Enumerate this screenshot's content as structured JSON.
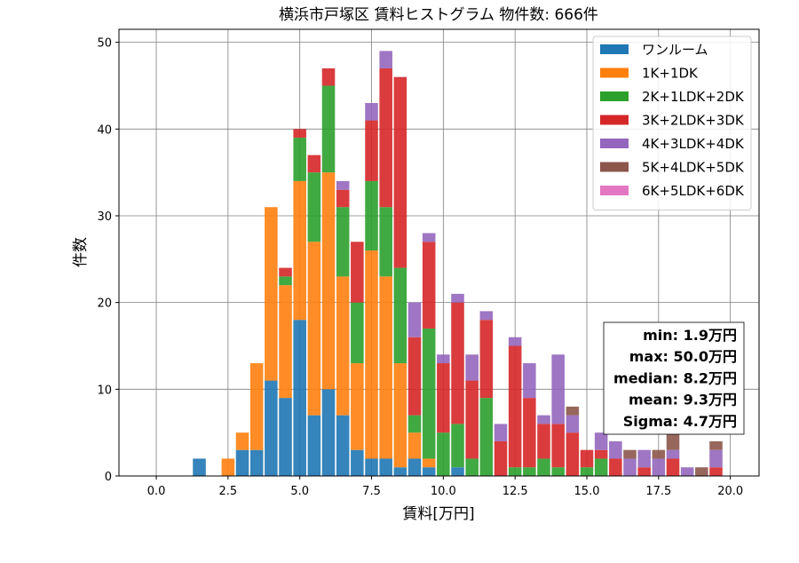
{
  "chart_data": {
    "type": "bar",
    "stacked": true,
    "title": "横浜市戸塚区 賃料ヒストグラム  物件数: 666件",
    "xlabel": "賃料[万円]",
    "ylabel": "件数",
    "xlim": [
      -1.3,
      21.0
    ],
    "ylim": [
      0,
      51.5
    ],
    "xticks": [
      0.0,
      2.5,
      5.0,
      7.5,
      10.0,
      12.5,
      15.0,
      17.5,
      20.0
    ],
    "xtick_labels": [
      "0.0",
      "2.5",
      "5.0",
      "7.5",
      "10.0",
      "12.5",
      "15.0",
      "17.5",
      "20.0"
    ],
    "yticks": [
      0,
      10,
      20,
      30,
      40,
      50
    ],
    "ytick_labels": [
      "0",
      "10",
      "20",
      "30",
      "40",
      "50"
    ],
    "grid": true,
    "legend_position": "top-right",
    "bin_width": 0.5,
    "x": [
      1.5,
      2.0,
      2.5,
      3.0,
      3.5,
      4.0,
      4.5,
      5.0,
      5.5,
      6.0,
      6.5,
      7.0,
      7.5,
      8.0,
      8.5,
      9.0,
      9.5,
      10.0,
      10.5,
      11.0,
      11.5,
      12.0,
      12.5,
      13.0,
      13.5,
      14.0,
      14.5,
      15.0,
      15.5,
      16.0,
      16.5,
      17.0,
      17.5,
      18.0,
      18.5,
      19.0,
      19.5
    ],
    "series": [
      {
        "name": "ワンルーム",
        "color": "#1f77b4",
        "values": [
          2,
          0,
          0,
          3,
          3,
          11,
          9,
          18,
          7,
          10,
          7,
          3,
          2,
          2,
          1,
          2,
          1,
          0,
          1,
          0,
          0,
          0,
          0,
          0,
          0,
          0,
          0,
          0,
          0,
          0,
          0,
          0,
          0,
          0,
          0,
          0,
          0
        ]
      },
      {
        "name": "1K+1DK",
        "color": "#ff7f0e",
        "values": [
          0,
          0,
          2,
          2,
          10,
          20,
          13,
          16,
          20,
          25,
          16,
          10,
          24,
          21,
          12,
          3,
          1,
          0,
          0,
          0,
          0,
          0,
          0,
          0,
          0,
          0,
          0,
          0,
          0,
          0,
          0,
          0,
          0,
          0,
          0,
          0,
          0
        ]
      },
      {
        "name": "2K+1LDK+2DK",
        "color": "#2ca02c",
        "values": [
          0,
          0,
          0,
          0,
          0,
          0,
          1,
          5,
          8,
          10,
          8,
          7,
          8,
          8,
          11,
          2,
          15,
          5,
          5,
          2,
          9,
          0,
          1,
          1,
          2,
          1,
          0,
          1,
          2,
          0,
          0,
          0,
          0,
          0,
          0,
          0,
          0
        ]
      },
      {
        "name": "3K+2LDK+3DK",
        "color": "#d62728",
        "values": [
          0,
          0,
          0,
          0,
          0,
          0,
          1,
          1,
          2,
          2,
          2,
          7,
          7,
          16,
          22,
          9,
          10,
          8,
          14,
          9,
          9,
          4,
          14,
          8,
          4,
          5,
          5,
          2,
          1,
          2,
          0,
          1,
          0,
          2,
          0,
          0,
          1
        ]
      },
      {
        "name": "4K+3LDK+4DK",
        "color": "#9467bd",
        "values": [
          0,
          0,
          0,
          0,
          0,
          0,
          0,
          0,
          0,
          0,
          1,
          0,
          2,
          2,
          0,
          4,
          1,
          1,
          1,
          3,
          1,
          2,
          1,
          4,
          1,
          8,
          2,
          0,
          2,
          2,
          2,
          2,
          2,
          1,
          1,
          0,
          2
        ]
      },
      {
        "name": "5K+4LDK+5DK",
        "color": "#8c564b",
        "values": [
          0,
          0,
          0,
          0,
          0,
          0,
          0,
          0,
          0,
          0,
          0,
          0,
          0,
          0,
          0,
          0,
          0,
          0,
          0,
          0,
          0,
          0,
          0,
          0,
          0,
          0,
          1,
          0,
          0,
          0,
          1,
          0,
          1,
          2,
          0,
          1,
          1
        ]
      },
      {
        "name": "6K+5LDK+6DK",
        "color": "#e377c2",
        "values": [
          0,
          0,
          0,
          0,
          0,
          0,
          0,
          0,
          0,
          0,
          0,
          0,
          0,
          0,
          0,
          0,
          0,
          0,
          0,
          0,
          0,
          0,
          0,
          0,
          0,
          0,
          0,
          0,
          0,
          0,
          0,
          0,
          0,
          0,
          0,
          0,
          0
        ]
      }
    ],
    "annotations": {
      "stats": [
        "min: 1.9万円",
        "max: 50.0万円",
        "median: 8.2万円",
        "mean: 9.3万円",
        "Sigma: 4.7万円"
      ]
    }
  }
}
